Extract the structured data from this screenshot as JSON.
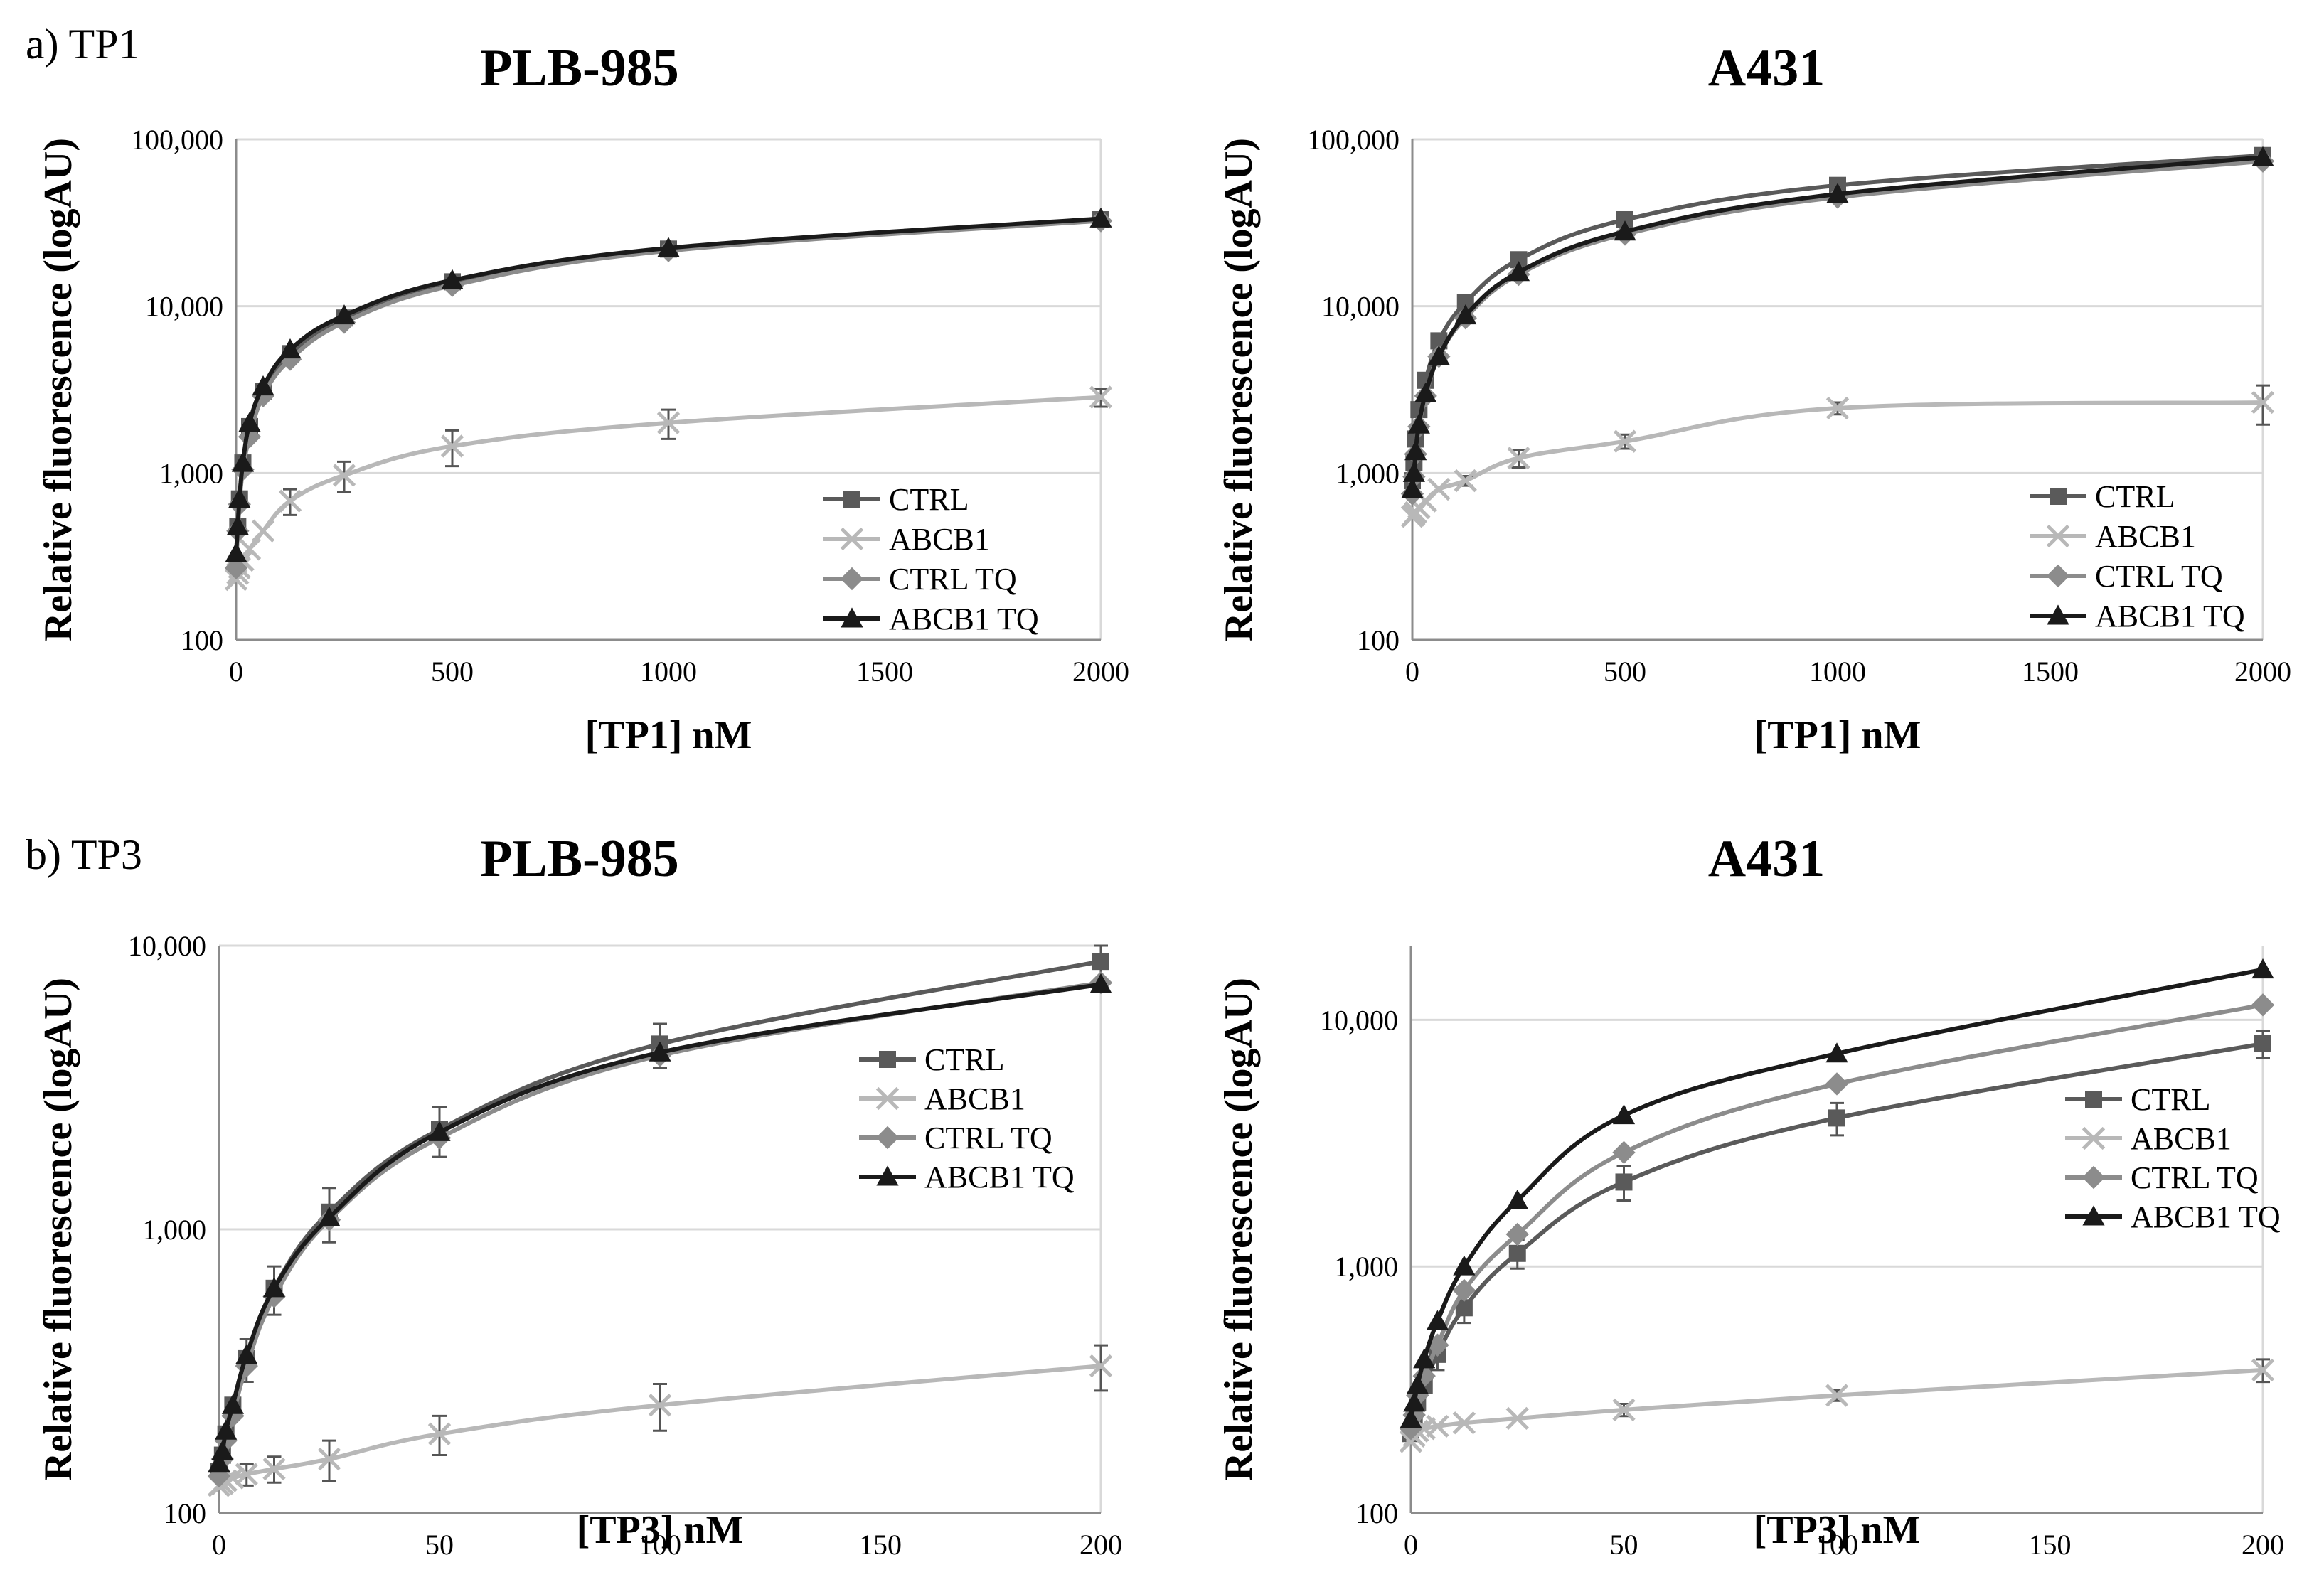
{
  "panel_labels": {
    "a": "a) TP1",
    "b": "b) TP3"
  },
  "colors": {
    "CTRL": "#5a5a5a",
    "ABCB1": "#b8b8b8",
    "CTRL TQ": "#8c8c8c",
    "ABCB1 TQ": "#1a1a1a",
    "grid": "#d9d9d9",
    "axis": "#8c8c8c"
  },
  "chart_data": [
    {
      "type": "line",
      "title": "PLB-985",
      "xlabel": "[TP1] nM",
      "ylabel": "Relative fluorescence (logAU)",
      "xlim": [
        0,
        2000
      ],
      "ylim": [
        100,
        100000
      ],
      "yscale": "log",
      "xticks": [
        0,
        500,
        1000,
        1500,
        2000
      ],
      "xtick_labels": [
        "0",
        "500",
        "1000",
        "1500",
        "2000"
      ],
      "yticks": [
        100,
        1000,
        10000,
        100000
      ],
      "ytick_labels": [
        "100",
        "1,000",
        "10,000",
        "100,000"
      ],
      "legend": "bottom-right",
      "series": [
        {
          "name": "CTRL",
          "marker": "square",
          "x": [
            0,
            3.9,
            7.8,
            15.6,
            31.25,
            62.5,
            125,
            250,
            500,
            1000,
            2000
          ],
          "y": [
            280,
            480,
            700,
            1150,
            1900,
            3100,
            5200,
            8500,
            14000,
            22000,
            33000
          ],
          "err": []
        },
        {
          "name": "ABCB1",
          "marker": "x",
          "x": [
            0,
            3.9,
            7.8,
            15.6,
            31.25,
            62.5,
            125,
            250,
            500,
            1000,
            2000
          ],
          "y": [
            230,
            250,
            270,
            300,
            350,
            450,
            680,
            970,
            1450,
            2000,
            2850
          ],
          "err": [
            0,
            0,
            0,
            0,
            0,
            0,
            120,
            200,
            350,
            400,
            350
          ]
        },
        {
          "name": "CTRL TQ",
          "marker": "diamond",
          "x": [
            0,
            3.9,
            7.8,
            15.6,
            31.25,
            62.5,
            125,
            250,
            500,
            1000,
            2000
          ],
          "y": [
            270,
            450,
            650,
            1050,
            1650,
            2900,
            4800,
            8000,
            13300,
            21500,
            32500
          ],
          "err": []
        },
        {
          "name": "ABCB1 TQ",
          "marker": "triangle",
          "x": [
            0,
            3.9,
            7.8,
            15.6,
            31.25,
            62.5,
            125,
            250,
            500,
            1000,
            2000
          ],
          "y": [
            330,
            480,
            700,
            1150,
            2000,
            3300,
            5500,
            8800,
            14300,
            22300,
            33500
          ],
          "err": []
        }
      ]
    },
    {
      "type": "line",
      "title": "A431",
      "xlabel": "[TP1] nM",
      "ylabel": "Relative fluorescence (logAU)",
      "xlim": [
        0,
        2000
      ],
      "ylim": [
        100,
        100000
      ],
      "yscale": "log",
      "xticks": [
        0,
        500,
        1000,
        1500,
        2000
      ],
      "xtick_labels": [
        "0",
        "500",
        "1000",
        "1500",
        "2000"
      ],
      "yticks": [
        100,
        1000,
        10000,
        100000
      ],
      "ytick_labels": [
        "100",
        "1,000",
        "10,000",
        "100,000"
      ],
      "legend": "bottom-right",
      "series": [
        {
          "name": "CTRL",
          "marker": "square",
          "x": [
            0,
            3.9,
            7.8,
            15.6,
            31.25,
            62.5,
            125,
            250,
            500,
            1000,
            2000
          ],
          "y": [
            900,
            1150,
            1600,
            2400,
            3600,
            6200,
            10500,
            19000,
            33000,
            53000,
            80000
          ],
          "err": []
        },
        {
          "name": "ABCB1",
          "marker": "x",
          "x": [
            0,
            3.9,
            7.8,
            15.6,
            31.25,
            62.5,
            125,
            250,
            500,
            1000,
            2000
          ],
          "y": [
            550,
            560,
            580,
            620,
            680,
            800,
            900,
            1230,
            1550,
            2450,
            2650
          ],
          "err": [
            0,
            0,
            0,
            0,
            0,
            0,
            60,
            150,
            150,
            200,
            700
          ]
        },
        {
          "name": "CTRL TQ",
          "marker": "diamond",
          "x": [
            0,
            3.9,
            7.8,
            15.6,
            31.25,
            62.5,
            125,
            250,
            500,
            1000,
            2000
          ],
          "y": [
            750,
            950,
            1300,
            1900,
            2900,
            5000,
            8500,
            15500,
            27000,
            45000,
            74000
          ],
          "err": []
        },
        {
          "name": "ABCB1 TQ",
          "marker": "triangle",
          "x": [
            0,
            3.9,
            7.8,
            15.6,
            31.25,
            62.5,
            125,
            250,
            500,
            1000,
            2000
          ],
          "y": [
            800,
            1000,
            1350,
            1950,
            3000,
            5000,
            8800,
            16000,
            28000,
            47000,
            78000
          ],
          "err": []
        }
      ]
    },
    {
      "type": "line",
      "title": "PLB-985",
      "xlabel": "[TP3] nM",
      "ylabel": "Relative fluorescence (logAU)",
      "xlim": [
        0,
        200
      ],
      "ylim": [
        100,
        10000
      ],
      "yscale": "log",
      "xticks": [
        0,
        50,
        100,
        150,
        200
      ],
      "xtick_labels": [
        "0",
        "50",
        "100",
        "150",
        "200"
      ],
      "yticks": [
        100,
        1000,
        10000
      ],
      "ytick_labels": [
        "100",
        "1,000",
        "10,000"
      ],
      "legend": "right",
      "series": [
        {
          "name": "CTRL",
          "marker": "square",
          "x": [
            0,
            0.78,
            1.56,
            3.13,
            6.25,
            12.5,
            25,
            50,
            100,
            200
          ],
          "y": [
            140,
            160,
            190,
            240,
            350,
            620,
            1150,
            2250,
            4500,
            8800
          ],
          "err": [
            0,
            0,
            0,
            0,
            60,
            120,
            250,
            450,
            800,
            1200
          ]
        },
        {
          "name": "ABCB1",
          "marker": "x",
          "x": [
            0,
            0.78,
            1.56,
            3.13,
            6.25,
            12.5,
            25,
            50,
            100,
            200
          ],
          "y": [
            125,
            127,
            130,
            133,
            137,
            143,
            155,
            190,
            240,
            330
          ],
          "err": [
            0,
            0,
            0,
            0,
            12,
            15,
            25,
            30,
            45,
            60
          ]
        },
        {
          "name": "CTRL TQ",
          "marker": "diamond",
          "x": [
            0,
            0.78,
            1.56,
            3.13,
            6.25,
            12.5,
            25,
            50,
            100,
            200
          ],
          "y": [
            135,
            155,
            180,
            220,
            330,
            580,
            1080,
            2100,
            4100,
            7400
          ],
          "err": []
        },
        {
          "name": "ABCB1 TQ",
          "marker": "triangle",
          "x": [
            0,
            0.78,
            1.56,
            3.13,
            6.25,
            12.5,
            25,
            50,
            100,
            200
          ],
          "y": [
            150,
            165,
            195,
            240,
            360,
            620,
            1100,
            2200,
            4200,
            7300
          ],
          "err": []
        }
      ]
    },
    {
      "type": "line",
      "title": "A431",
      "xlabel": "[TP3] nM",
      "ylabel": "Relative fluorescence (logAU)",
      "xlim": [
        0,
        200
      ],
      "ylim": [
        100,
        20000
      ],
      "yscale": "log",
      "xticks": [
        0,
        50,
        100,
        150,
        200
      ],
      "xtick_labels": [
        "0",
        "50",
        "100",
        "150",
        "200"
      ],
      "yticks": [
        100,
        1000,
        10000
      ],
      "ytick_labels": [
        "100",
        "1,000",
        "10,000"
      ],
      "legend": "right",
      "series": [
        {
          "name": "CTRL",
          "marker": "square",
          "x": [
            0,
            0.78,
            1.56,
            3.13,
            6.25,
            12.5,
            25,
            50,
            100,
            200
          ],
          "y": [
            210,
            240,
            280,
            330,
            440,
            680,
            1130,
            2200,
            4000,
            8000
          ],
          "err": [
            0,
            0,
            0,
            0,
            60,
            90,
            150,
            350,
            600,
            1000
          ]
        },
        {
          "name": "ABCB1",
          "marker": "x",
          "x": [
            0,
            0.78,
            1.56,
            3.13,
            6.25,
            12.5,
            25,
            50,
            100,
            200
          ],
          "y": [
            195,
            205,
            215,
            220,
            225,
            232,
            242,
            262,
            300,
            380
          ],
          "err": [
            0,
            0,
            0,
            0,
            0,
            0,
            0,
            15,
            15,
            40
          ]
        },
        {
          "name": "CTRL TQ",
          "marker": "diamond",
          "x": [
            0,
            0.78,
            1.56,
            3.13,
            6.25,
            12.5,
            25,
            50,
            100,
            200
          ],
          "y": [
            220,
            250,
            300,
            360,
            480,
            800,
            1350,
            2900,
            5500,
            11500
          ],
          "err": []
        },
        {
          "name": "ABCB1 TQ",
          "marker": "triangle",
          "x": [
            0,
            0.78,
            1.56,
            3.13,
            6.25,
            12.5,
            25,
            50,
            100,
            200
          ],
          "y": [
            240,
            280,
            330,
            420,
            600,
            1000,
            1850,
            4100,
            7300,
            16000
          ],
          "err": []
        }
      ]
    }
  ]
}
